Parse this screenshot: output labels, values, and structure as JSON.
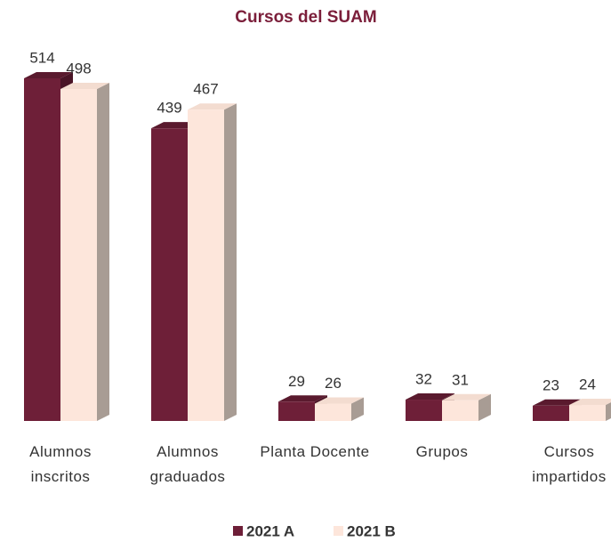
{
  "chart_data": {
    "type": "bar3d",
    "title": "Cursos del SUAM",
    "categories": [
      "Alumnos inscritos",
      "Alumnos graduados",
      "Planta Docente",
      "Grupos",
      "Cursos impartidos"
    ],
    "series": [
      {
        "name": "2021 A",
        "color": "#6e1f38",
        "values": [
          514,
          439,
          29,
          32,
          23
        ]
      },
      {
        "name": "2021 B",
        "color": "#fde6db",
        "values": [
          498,
          467,
          26,
          31,
          24
        ]
      }
    ],
    "legend": "bottom"
  }
}
